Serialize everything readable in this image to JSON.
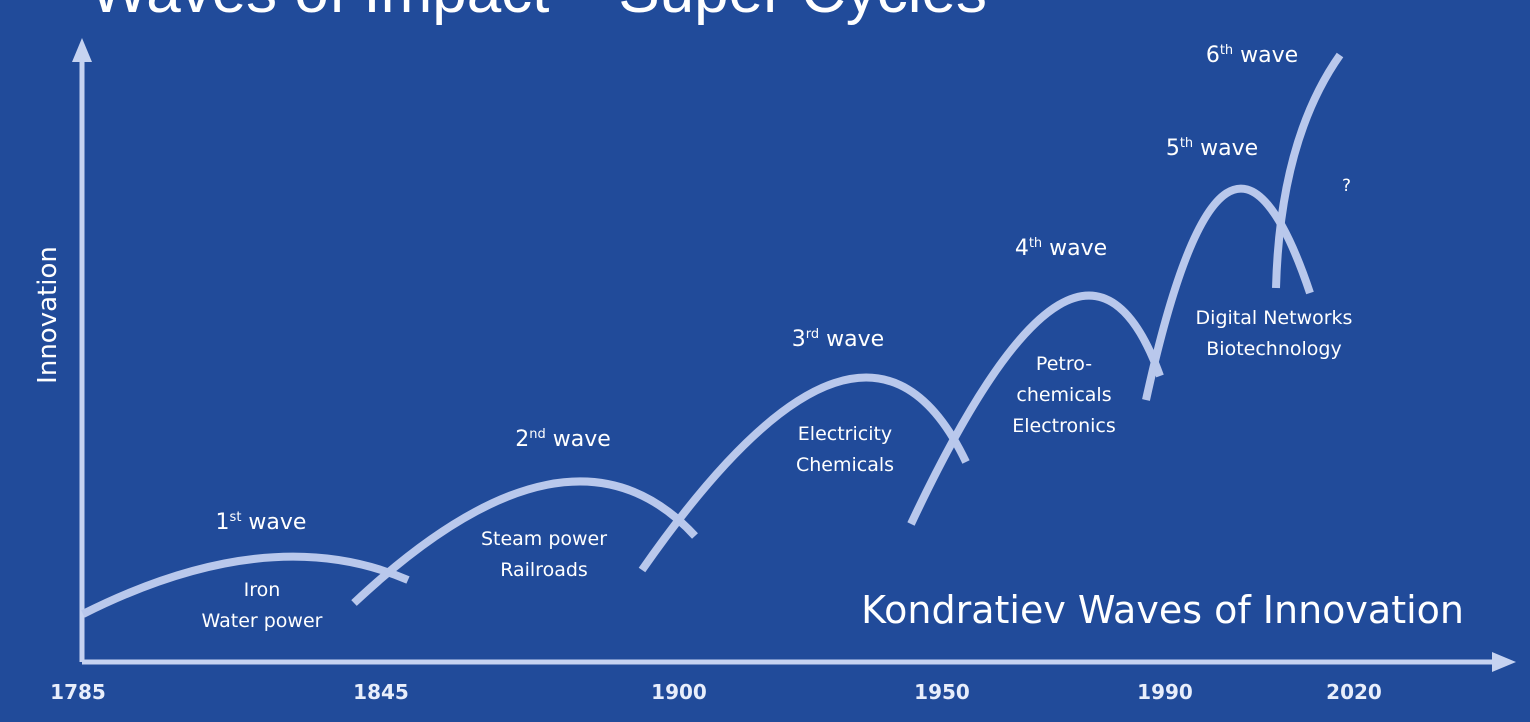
{
  "header": {
    "title_fragment": "Waves of Impact – Super Cycles"
  },
  "chart_data": {
    "type": "line",
    "title": "Kondratiev Waves of Innovation",
    "ylabel": "Innovation",
    "xlabel": "",
    "xticks": [
      "1785",
      "1845",
      "1900",
      "1950",
      "1990",
      "2020"
    ],
    "series": [
      {
        "ordinal": "1",
        "suffix": "st",
        "word": "wave",
        "lines": [
          "Iron",
          "Water power"
        ],
        "start": 1785,
        "peak": 1830,
        "end": 1850
      },
      {
        "ordinal": "2",
        "suffix": "nd",
        "word": "wave",
        "lines": [
          "Steam power",
          "Railroads"
        ],
        "start": 1845,
        "peak": 1885,
        "end": 1905
      },
      {
        "ordinal": "3",
        "suffix": "rd",
        "word": "wave",
        "lines": [
          "Electricity",
          "Chemicals"
        ],
        "start": 1895,
        "peak": 1935,
        "end": 1952
      },
      {
        "ordinal": "4",
        "suffix": "th",
        "word": "wave",
        "lines": [
          "Petro-",
          "chemicals",
          "Electronics"
        ],
        "start": 1945,
        "peak": 1975,
        "end": 1990
      },
      {
        "ordinal": "5",
        "suffix": "th",
        "word": "wave",
        "lines": [
          "Digital Networks",
          "Biotechnology"
        ],
        "start": 1989,
        "peak": 2005,
        "end": 2015
      },
      {
        "ordinal": "6",
        "suffix": "th",
        "word": "wave",
        "lines": [],
        "start": 2010,
        "peak": 2020,
        "end": 2020
      }
    ],
    "annotations": [
      "?"
    ],
    "colors": {
      "background": "#214b9a",
      "curve": "#b9c8ec",
      "axis": "#c6d3f1",
      "text": "#ffffff"
    }
  }
}
